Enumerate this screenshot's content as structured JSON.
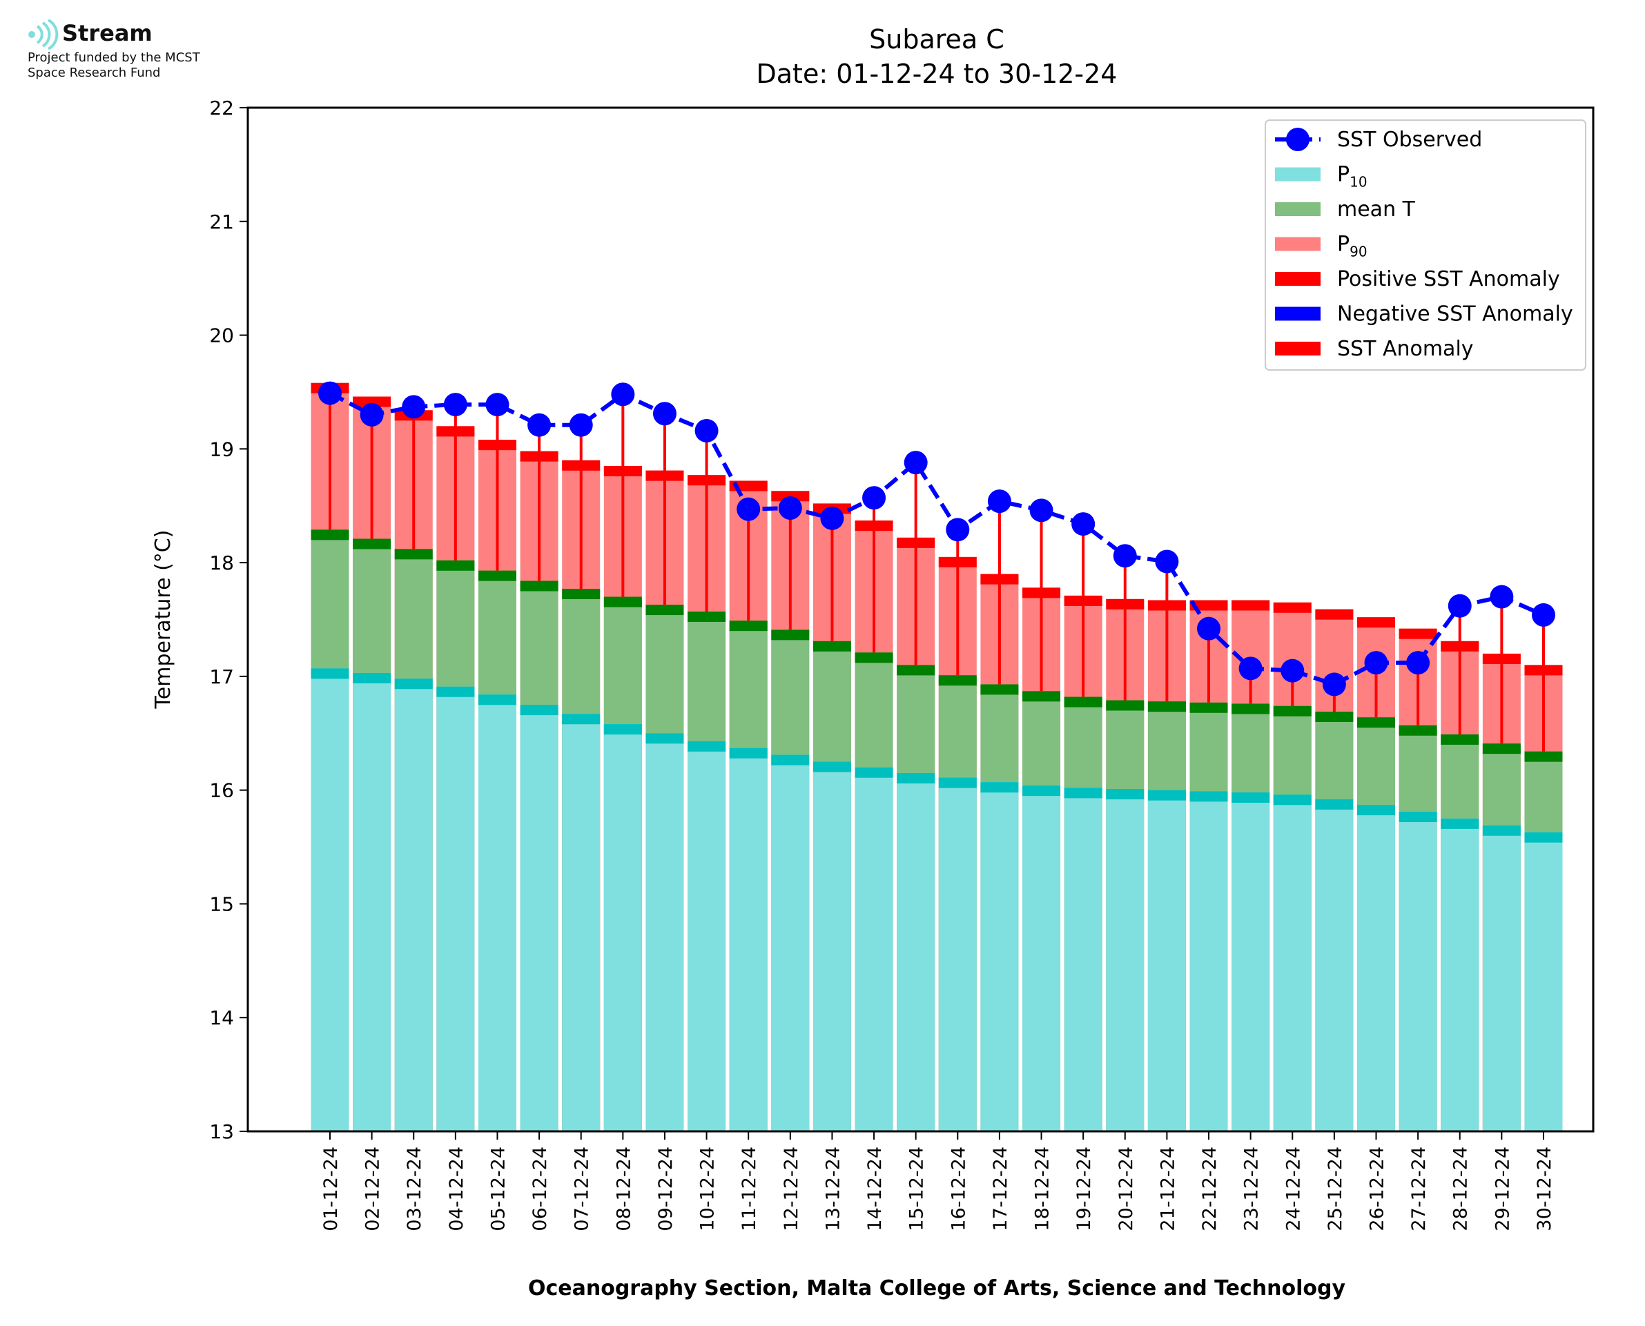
{
  "logo": {
    "name": "Stream",
    "line1": "Project funded by the MCST",
    "line2": "Space Research Fund",
    "color": "#7fdede"
  },
  "chart_data": {
    "type": "bar",
    "title": "Subarea C",
    "subtitle": "Date: 01-12-24 to 30-12-24",
    "xlabel": "Oceanography Section, Malta College of Arts, Science and Technology",
    "ylabel": "Temperature (°C)",
    "ylim": [
      13,
      22
    ],
    "yticks": [
      13,
      14,
      15,
      16,
      17,
      18,
      19,
      20,
      21,
      22
    ],
    "grid": false,
    "legend_position": "top-right",
    "legend": [
      {
        "kind": "line-marker",
        "label": "SST Observed",
        "sub": "",
        "color": "#0000ff"
      },
      {
        "kind": "patch",
        "label": "P",
        "sub": "10",
        "color": "#80dfdf"
      },
      {
        "kind": "patch",
        "label": "mean T",
        "sub": "",
        "color": "#80bf80"
      },
      {
        "kind": "patch",
        "label": "P",
        "sub": "90",
        "color": "#ff8080"
      },
      {
        "kind": "patch",
        "label": "Positive SST Anomaly",
        "sub": "",
        "color": "#ff0000"
      },
      {
        "kind": "patch",
        "label": "Negative SST Anomaly",
        "sub": "",
        "color": "#0000ff"
      },
      {
        "kind": "patch",
        "label": "SST Anomaly",
        "sub": "",
        "color": "#ff0000"
      }
    ],
    "colors": {
      "p10": "#80dfdf",
      "p10_cap": "#00bfbf",
      "mean": "#80bf80",
      "mean_cap": "#008000",
      "p90": "#ff8080",
      "p90_cap": "#ff0000",
      "observed": "#0000ff",
      "anomaly": "#ff0000"
    },
    "categories": [
      "01-12-24",
      "02-12-24",
      "03-12-24",
      "04-12-24",
      "05-12-24",
      "06-12-24",
      "07-12-24",
      "08-12-24",
      "09-12-24",
      "10-12-24",
      "11-12-24",
      "12-12-24",
      "13-12-24",
      "14-12-24",
      "15-12-24",
      "16-12-24",
      "17-12-24",
      "18-12-24",
      "19-12-24",
      "20-12-24",
      "21-12-24",
      "22-12-24",
      "23-12-24",
      "24-12-24",
      "25-12-24",
      "26-12-24",
      "27-12-24",
      "28-12-24",
      "29-12-24",
      "30-12-24"
    ],
    "series": [
      {
        "name": "P10",
        "values": [
          17.07,
          17.03,
          16.98,
          16.91,
          16.84,
          16.75,
          16.67,
          16.58,
          16.5,
          16.43,
          16.37,
          16.31,
          16.25,
          16.2,
          16.15,
          16.11,
          16.07,
          16.04,
          16.02,
          16.01,
          16.0,
          15.99,
          15.98,
          15.96,
          15.92,
          15.87,
          15.81,
          15.75,
          15.69,
          15.63
        ]
      },
      {
        "name": "mean T",
        "values": [
          18.29,
          18.21,
          18.12,
          18.02,
          17.93,
          17.84,
          17.77,
          17.7,
          17.63,
          17.57,
          17.49,
          17.41,
          17.31,
          17.21,
          17.1,
          17.01,
          16.93,
          16.87,
          16.82,
          16.79,
          16.78,
          16.77,
          16.76,
          16.74,
          16.69,
          16.64,
          16.57,
          16.49,
          16.41,
          16.34
        ]
      },
      {
        "name": "P90",
        "values": [
          19.58,
          19.46,
          19.34,
          19.2,
          19.08,
          18.98,
          18.9,
          18.85,
          18.81,
          18.77,
          18.72,
          18.63,
          18.52,
          18.37,
          18.22,
          18.05,
          17.9,
          17.78,
          17.71,
          17.68,
          17.67,
          17.67,
          17.67,
          17.65,
          17.59,
          17.52,
          17.42,
          17.31,
          17.2,
          17.1
        ]
      },
      {
        "name": "SST Observed",
        "values": [
          19.49,
          19.3,
          19.37,
          19.39,
          19.39,
          19.21,
          19.21,
          19.48,
          19.31,
          19.16,
          18.47,
          18.48,
          18.39,
          18.57,
          18.88,
          18.29,
          18.54,
          18.46,
          18.34,
          18.06,
          18.01,
          17.42,
          17.07,
          17.05,
          16.93,
          17.12,
          17.12,
          17.62,
          17.7,
          17.54
        ]
      }
    ]
  }
}
